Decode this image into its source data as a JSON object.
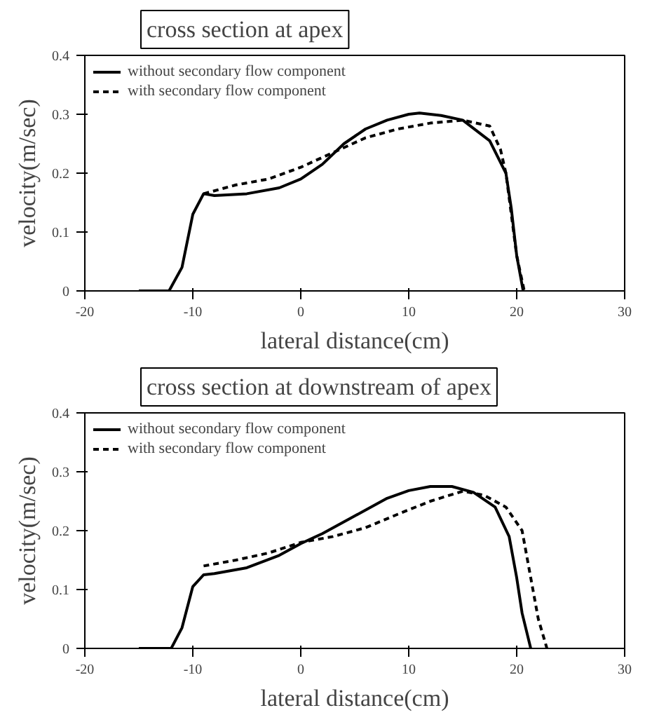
{
  "chart_data": [
    {
      "type": "line",
      "title": "cross section at apex",
      "xlabel": "lateral distance(cm)",
      "ylabel": "velocity(m/sec)",
      "xlim": [
        -20,
        30
      ],
      "ylim": [
        0,
        0.4
      ],
      "xticks": [
        -20,
        -10,
        0,
        10,
        20,
        30
      ],
      "yticks": [
        0,
        0.1,
        0.2,
        0.3,
        0.4
      ],
      "grid": false,
      "legend": "top left",
      "series": [
        {
          "name": "without secondary flow component",
          "color": "#000000",
          "line_style": "solid",
          "x": [
            -15,
            -12.2,
            -11,
            -10,
            -9,
            -8,
            -5,
            -2,
            0,
            2,
            4,
            6,
            8,
            10,
            11,
            13,
            15,
            17.5,
            19,
            19.5,
            20,
            20.6
          ],
          "values": [
            0,
            0,
            0.04,
            0.13,
            0.165,
            0.162,
            0.165,
            0.175,
            0.19,
            0.215,
            0.25,
            0.275,
            0.29,
            0.3,
            0.302,
            0.298,
            0.29,
            0.255,
            0.2,
            0.14,
            0.06,
            0
          ]
        },
        {
          "name": "with secondary flow component",
          "color": "#000000",
          "line_style": "dashed",
          "x": [
            -9,
            -6,
            -3,
            0,
            3,
            6,
            9,
            12,
            15,
            17.5,
            18.5,
            19,
            19.5,
            20,
            20.7
          ],
          "values": [
            0.165,
            0.18,
            0.19,
            0.21,
            0.235,
            0.26,
            0.275,
            0.285,
            0.29,
            0.28,
            0.24,
            0.2,
            0.13,
            0.06,
            0
          ]
        }
      ]
    },
    {
      "type": "line",
      "title": "cross section at downstream of apex",
      "xlabel": "lateral distance(cm)",
      "ylabel": "velocity(m/sec)",
      "xlim": [
        -20,
        30
      ],
      "ylim": [
        0,
        0.4
      ],
      "xticks": [
        -20,
        -10,
        0,
        10,
        20,
        30
      ],
      "yticks": [
        0,
        0.1,
        0.2,
        0.3,
        0.4
      ],
      "grid": false,
      "legend": "top left",
      "series": [
        {
          "name": "without secondary flow component",
          "color": "#000000",
          "line_style": "solid",
          "x": [
            -15,
            -12,
            -11,
            -10,
            -9,
            -8,
            -5,
            -2,
            0,
            2,
            5,
            8,
            10,
            12,
            14,
            16,
            18,
            19.3,
            20,
            20.5,
            21.3
          ],
          "values": [
            0,
            0,
            0.035,
            0.105,
            0.125,
            0.127,
            0.137,
            0.158,
            0.178,
            0.195,
            0.225,
            0.255,
            0.268,
            0.275,
            0.275,
            0.265,
            0.24,
            0.19,
            0.12,
            0.06,
            0
          ]
        },
        {
          "name": "with secondary flow component",
          "color": "#000000",
          "line_style": "dashed",
          "x": [
            -9,
            -6,
            -3,
            0,
            3,
            6,
            9,
            12,
            15,
            17,
            19,
            20.5,
            21,
            21.5,
            22,
            22.8
          ],
          "values": [
            0.14,
            0.15,
            0.162,
            0.18,
            0.19,
            0.205,
            0.228,
            0.25,
            0.267,
            0.26,
            0.24,
            0.2,
            0.15,
            0.1,
            0.05,
            0
          ]
        }
      ]
    }
  ]
}
